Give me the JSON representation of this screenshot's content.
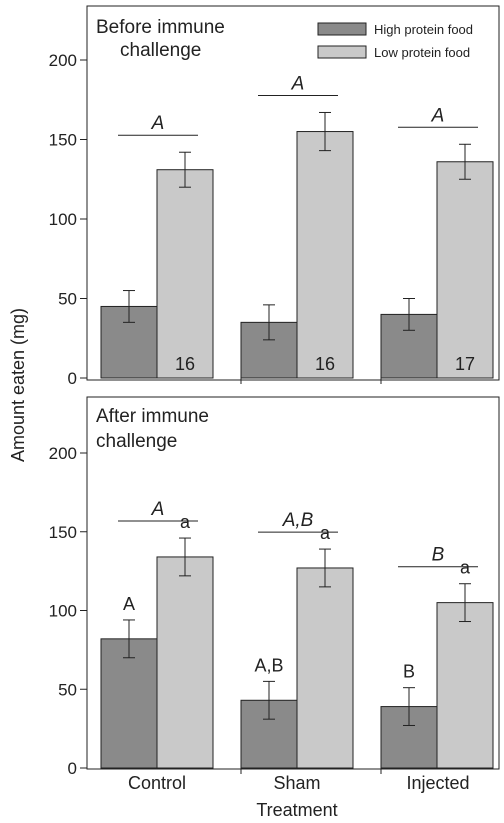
{
  "chart_data": [
    {
      "type": "bar",
      "title": "Before immune challenge",
      "title_lines": [
        "Before immune",
        "challenge"
      ],
      "xlabel": "Treatment",
      "ylabel": "Amount eaten (mg)",
      "ylim": [
        0,
        220
      ],
      "yticks": [
        0,
        50,
        100,
        150,
        200
      ],
      "ytick_labels": [
        "0",
        "50",
        "100",
        "150",
        "200"
      ],
      "categories": [
        "Control",
        "Sham",
        "Injected"
      ],
      "series": [
        {
          "name": "High protein food",
          "color": "#8a8a8a",
          "values": [
            45,
            35,
            40
          ],
          "errors": [
            10,
            11,
            10
          ]
        },
        {
          "name": "Low protein food",
          "color": "#c9c9c9",
          "values": [
            131,
            155,
            136
          ],
          "errors": [
            11,
            12,
            11
          ]
        }
      ],
      "group_letters": [
        "A",
        "A",
        "A"
      ],
      "sample_sizes": [
        "16",
        "16",
        "17"
      ],
      "bar_letters": null,
      "legend_position": "top-right"
    },
    {
      "type": "bar",
      "title": "After immune challenge",
      "title_lines": [
        "After immune",
        "challenge"
      ],
      "xlabel": "Treatment",
      "ylabel": "Amount eaten (mg)",
      "ylim": [
        0,
        220
      ],
      "yticks": [
        0,
        50,
        100,
        150,
        200
      ],
      "ytick_labels": [
        "0",
        "50",
        "100",
        "150",
        "200"
      ],
      "categories": [
        "Control",
        "Sham",
        "Injected"
      ],
      "series": [
        {
          "name": "High protein food",
          "color": "#8a8a8a",
          "values": [
            82,
            43,
            39
          ],
          "errors": [
            12,
            12,
            12
          ]
        },
        {
          "name": "Low protein food",
          "color": "#c9c9c9",
          "values": [
            134,
            127,
            105
          ],
          "errors": [
            12,
            12,
            12
          ]
        }
      ],
      "group_letters": [
        "A",
        "A,B",
        "B"
      ],
      "sample_sizes": null,
      "bar_letters": [
        [
          "A",
          "a"
        ],
        [
          "A,B",
          "a"
        ],
        [
          "B",
          "a"
        ]
      ]
    }
  ],
  "axis": {
    "ylabel": "Amount eaten (mg)",
    "xlabel": "Treatment",
    "categories": [
      "Control",
      "Sham",
      "Injected"
    ]
  },
  "legend": [
    {
      "label": "High protein food",
      "color": "#8a8a8a"
    },
    {
      "label": "Low protein food",
      "color": "#c9c9c9"
    }
  ]
}
